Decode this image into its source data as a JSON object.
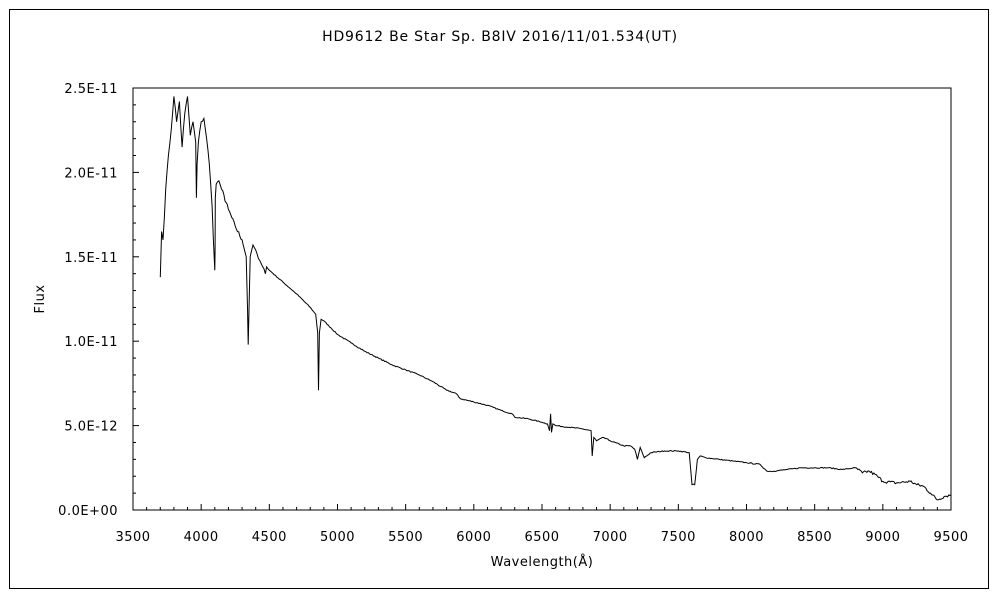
{
  "chart_data": {
    "type": "line",
    "title": "HD9612    Be Star    Sp. B8IV    2016/11/01.534(UT)",
    "xlabel": "Wavelength(Å)",
    "ylabel": "Flux",
    "xlim": [
      3500,
      9500
    ],
    "ylim": [
      0,
      2.5e-11
    ],
    "x_ticks": [
      "3500",
      "4000",
      "4500",
      "5000",
      "5500",
      "6000",
      "6500",
      "7000",
      "7500",
      "8000",
      "8500",
      "9000",
      "9500"
    ],
    "y_ticks": [
      "0.0E+00",
      "5.0E-12",
      "1.0E-11",
      "1.5E-11",
      "2.0E-11",
      "2.5E-11"
    ],
    "grid": false,
    "series": [
      {
        "color": "#000000",
        "x": [
          3700,
          3710,
          3720,
          3740,
          3760,
          3780,
          3800,
          3820,
          3840,
          3860,
          3880,
          3900,
          3920,
          3940,
          3960,
          3965,
          3970,
          3980,
          4000,
          4020,
          4040,
          4060,
          4080,
          4100,
          4102,
          4104,
          4110,
          4130,
          4150,
          4200,
          4250,
          4300,
          4330,
          4340,
          4345,
          4360,
          4380,
          4400,
          4420,
          4440,
          4460,
          4471,
          4480,
          4500,
          4600,
          4700,
          4800,
          4840,
          4855,
          4861,
          4867,
          4880,
          4900,
          4950,
          5000,
          5100,
          5200,
          5300,
          5400,
          5500,
          5600,
          5700,
          5800,
          5870,
          5900,
          6000,
          6100,
          6200,
          6280,
          6300,
          6400,
          6500,
          6540,
          6555,
          6563,
          6570,
          6580,
          6600,
          6700,
          6800,
          6860,
          6868,
          6880,
          6900,
          6950,
          7000,
          7100,
          7150,
          7180,
          7200,
          7220,
          7250,
          7300,
          7400,
          7500,
          7580,
          7600,
          7620,
          7640,
          7660,
          7700,
          7800,
          7900,
          8000,
          8100,
          8150,
          8200,
          8300,
          8400,
          8500,
          8600,
          8700,
          8800,
          8850,
          8900,
          8960,
          9000,
          9100,
          9200,
          9250,
          9300,
          9350,
          9400,
          9450,
          9500
        ],
        "y": [
          1.38e-11,
          1.65e-11,
          1.6e-11,
          1.9e-11,
          2.1e-11,
          2.25e-11,
          2.45e-11,
          2.3e-11,
          2.42e-11,
          2.15e-11,
          2.35e-11,
          2.45e-11,
          2.22e-11,
          2.3e-11,
          2.18e-11,
          1.85e-11,
          2.05e-11,
          2.18e-11,
          2.3e-11,
          2.32e-11,
          2.2e-11,
          2.05e-11,
          1.8e-11,
          1.42e-11,
          1.55e-11,
          1.85e-11,
          1.93e-11,
          1.95e-11,
          1.9e-11,
          1.78e-11,
          1.68e-11,
          1.6e-11,
          1.5e-11,
          1.2e-11,
          9.8e-12,
          1.5e-11,
          1.57e-11,
          1.54e-11,
          1.49e-11,
          1.46e-11,
          1.43e-11,
          1.4e-11,
          1.44e-11,
          1.42e-11,
          1.35e-11,
          1.28e-11,
          1.2e-11,
          1.16e-11,
          1.05e-11,
          7.1e-12,
          1.05e-11,
          1.13e-11,
          1.12e-11,
          1.08e-11,
          1.04e-11,
          9.9e-12,
          9.4e-12,
          9e-12,
          8.6e-12,
          8.3e-12,
          8e-12,
          7.6e-12,
          7.1e-12,
          6.9e-12,
          6.6e-12,
          6.4e-12,
          6.2e-12,
          5.9e-12,
          5.7e-12,
          5.5e-12,
          5.4e-12,
          5.2e-12,
          5.1e-12,
          4.7e-12,
          5.7e-12,
          4.6e-12,
          5.1e-12,
          5e-12,
          4.9e-12,
          4.8e-12,
          4.7e-12,
          3.2e-12,
          4.3e-12,
          4.1e-12,
          4.3e-12,
          4.1e-12,
          3.8e-12,
          3.8e-12,
          3.6e-12,
          3e-12,
          3.7e-12,
          3.1e-12,
          3.4e-12,
          3.5e-12,
          3.5e-12,
          3.4e-12,
          1.5e-12,
          1.5e-12,
          3e-12,
          3.2e-12,
          3.1e-12,
          3e-12,
          2.9e-12,
          2.8e-12,
          2.7e-12,
          2.3e-12,
          2.3e-12,
          2.4e-12,
          2.5e-12,
          2.5e-12,
          2.5e-12,
          2.4e-12,
          2.5e-12,
          2.2e-12,
          2.3e-12,
          2e-12,
          1.7e-12,
          1.6e-12,
          1.7e-12,
          1.5e-12,
          1.4e-12,
          1e-12,
          6e-13,
          8e-13,
          9e-13
        ]
      }
    ]
  }
}
